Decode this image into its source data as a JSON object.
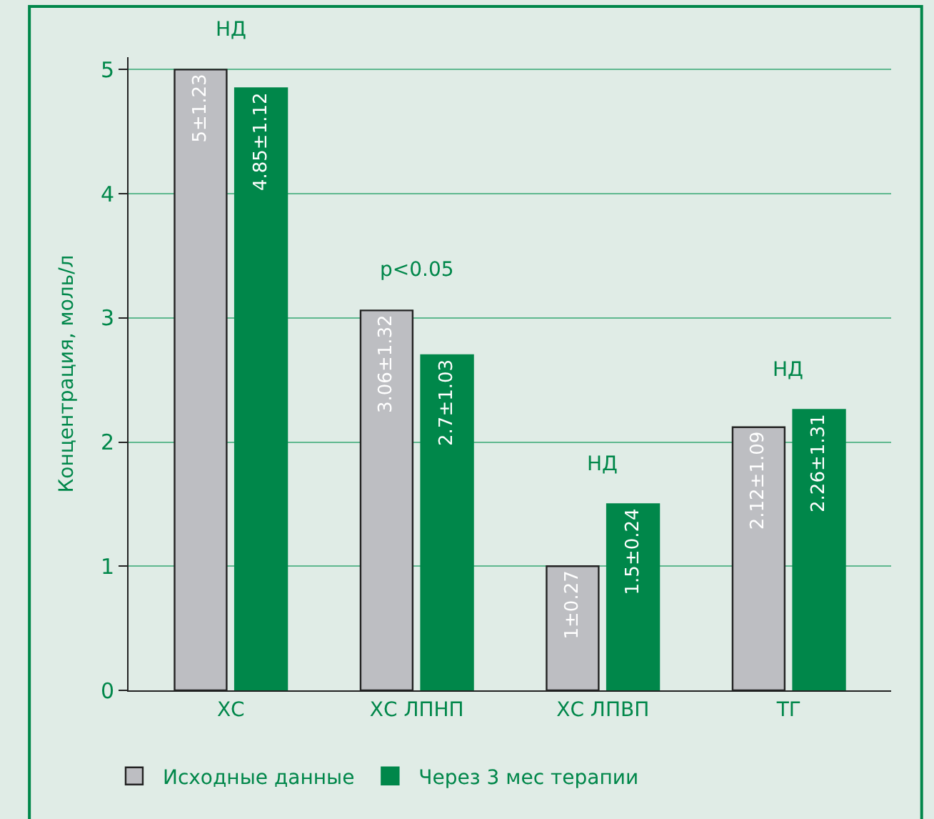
{
  "chart_data": {
    "type": "bar",
    "ylabel": "Концентрация, моль/л",
    "categories": [
      "ХС",
      "ХС ЛПНП",
      "ХС ЛПВП",
      "ТГ"
    ],
    "series": [
      {
        "name": "Исходные данные",
        "color": "#bdbec2",
        "values": [
          5,
          3.06,
          1,
          2.12
        ],
        "value_labels": [
          "5±1.23",
          "3.06±1.32",
          "1±0.27",
          "2.12±1.09"
        ]
      },
      {
        "name": "Через 3 мес терапии",
        "color": "#00874a",
        "values": [
          4.85,
          2.7,
          1.5,
          2.26
        ],
        "value_labels": [
          "4.85±1.12",
          "2.7±1.03",
          "1.5±0.24",
          "2.26±1.31"
        ]
      }
    ],
    "annotations": [
      "НД",
      "p<0.05",
      "НД",
      "НД"
    ],
    "ylim": [
      0,
      5.1
    ],
    "yticks": [
      0,
      1,
      2,
      3,
      4,
      5
    ],
    "grid": "y",
    "legend": "bottom left"
  }
}
